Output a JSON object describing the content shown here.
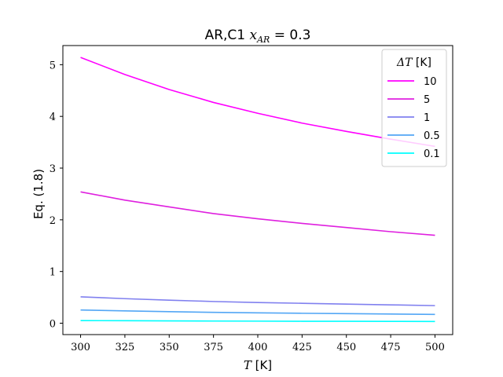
{
  "chart_data": {
    "type": "line",
    "title": {
      "prefix": "AR,C1 ",
      "math_base": "x",
      "math_sub": "AR",
      "suffix": " = 0.3"
    },
    "xlabel": {
      "math": "T",
      "text": " [K]"
    },
    "ylabel": "Eq. (1.8)",
    "xlim": [
      290,
      510
    ],
    "ylim": [
      -0.22,
      5.37
    ],
    "xticks": [
      300,
      325,
      350,
      375,
      400,
      425,
      450,
      475,
      500
    ],
    "yticks": [
      0,
      1,
      2,
      3,
      4,
      5
    ],
    "legend": {
      "title_math": "ΔT",
      "title_text": " [K]",
      "position": "top-right"
    },
    "x": [
      300,
      325,
      350,
      375,
      400,
      425,
      450,
      475,
      500
    ],
    "series": [
      {
        "name": "10",
        "color": "#ff00ff",
        "values": [
          5.14,
          4.81,
          4.52,
          4.27,
          4.06,
          3.87,
          3.71,
          3.56,
          3.42
        ]
      },
      {
        "name": "5",
        "color": "#df20df",
        "values": [
          2.54,
          2.38,
          2.25,
          2.12,
          2.02,
          1.93,
          1.85,
          1.77,
          1.7
        ]
      },
      {
        "name": "1",
        "color": "#8080ef",
        "values": [
          0.51,
          0.475,
          0.445,
          0.42,
          0.4,
          0.385,
          0.37,
          0.355,
          0.34
        ]
      },
      {
        "name": "0.5",
        "color": "#52a6f5",
        "values": [
          0.255,
          0.238,
          0.223,
          0.21,
          0.2,
          0.192,
          0.185,
          0.178,
          0.17
        ]
      },
      {
        "name": "0.1",
        "color": "#00ffff",
        "values": [
          0.051,
          0.048,
          0.045,
          0.042,
          0.04,
          0.038,
          0.037,
          0.035,
          0.034
        ]
      }
    ]
  }
}
